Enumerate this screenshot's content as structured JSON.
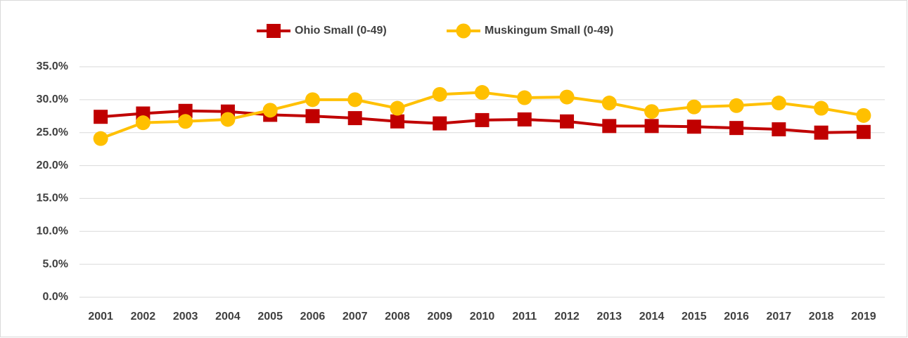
{
  "chart_data": {
    "type": "line",
    "categories": [
      "2001",
      "2002",
      "2003",
      "2004",
      "2005",
      "2006",
      "2007",
      "2008",
      "2009",
      "2010",
      "2011",
      "2012",
      "2013",
      "2014",
      "2015",
      "2016",
      "2017",
      "2018",
      "2019"
    ],
    "series": [
      {
        "name": "Ohio Small (0-49)",
        "color": "#c00000",
        "marker": "square",
        "values": [
          27.4,
          27.9,
          28.3,
          28.2,
          27.7,
          27.5,
          27.2,
          26.7,
          26.4,
          26.9,
          27.0,
          26.7,
          26.0,
          26.0,
          25.9,
          25.7,
          25.5,
          25.0,
          25.1
        ]
      },
      {
        "name": "Muskingum  Small (0-49)",
        "color": "#ffc000",
        "marker": "circle",
        "values": [
          24.1,
          26.5,
          26.7,
          27.0,
          28.4,
          30.0,
          30.0,
          28.7,
          30.8,
          31.1,
          30.3,
          30.4,
          29.5,
          28.2,
          28.9,
          29.1,
          29.5,
          28.7,
          27.6
        ]
      }
    ],
    "ylim": [
      0,
      35
    ],
    "yticks": [
      {
        "value": 0,
        "label": "0.0%"
      },
      {
        "value": 5,
        "label": "5.0%"
      },
      {
        "value": 10,
        "label": "10.0%"
      },
      {
        "value": 15,
        "label": "15.0%"
      },
      {
        "value": 20,
        "label": "20.0%"
      },
      {
        "value": 25,
        "label": "25.0%"
      },
      {
        "value": 30,
        "label": "30.0%"
      },
      {
        "value": 35,
        "label": "35.0%"
      }
    ],
    "grid": true,
    "legend": "top"
  }
}
